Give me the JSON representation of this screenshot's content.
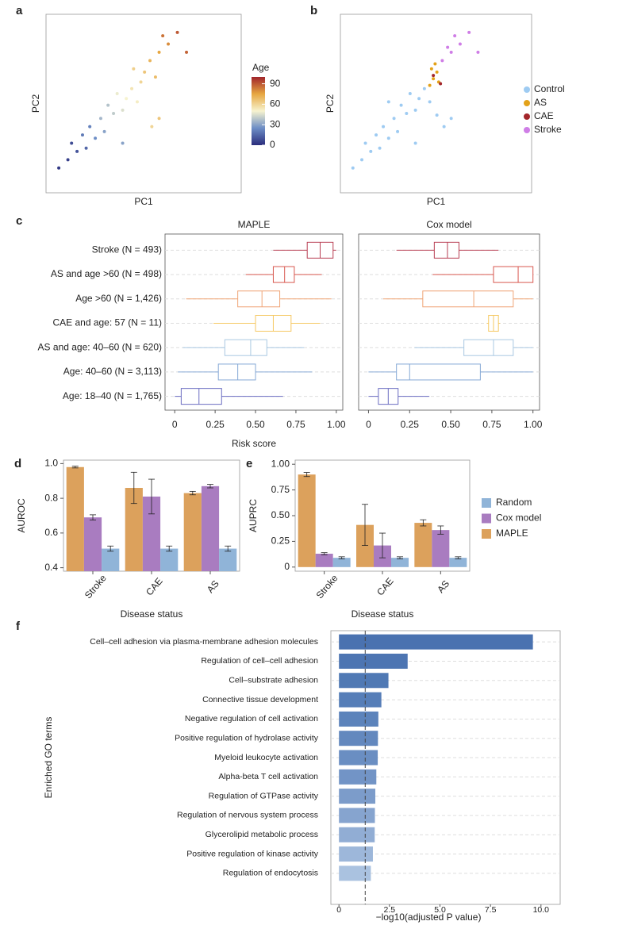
{
  "chart_data": [
    {
      "type": "scatter",
      "label": "a",
      "xlabel": "PC1",
      "ylabel": "PC2",
      "xlim": [
        -4.2,
        6.5
      ],
      "ylim": [
        -4.5,
        6.3
      ],
      "x": [
        -3,
        -2.5,
        -2.8,
        -2,
        -2.2,
        -1.5,
        -1.8,
        -1,
        -1.2,
        -0.5,
        -0.8,
        0,
        0.2,
        -0.3,
        0.5,
        0.8,
        1,
        1.2,
        0.6,
        1.5,
        1.8,
        2,
        2.5,
        2.2,
        3,
        1.6,
        2,
        -3.5,
        3.5,
        0
      ],
      "y": [
        -2.5,
        -2,
        -1.5,
        -1.8,
        -1,
        -1.2,
        -0.5,
        -0.8,
        0,
        0.3,
        0.8,
        0.5,
        1.2,
        1.5,
        1.8,
        1,
        2.2,
        2.8,
        3,
        3.5,
        2.5,
        4,
        4.5,
        5,
        5.2,
        -0.5,
        0,
        -3,
        4,
        -1.5
      ],
      "color_values": [
        5,
        10,
        8,
        15,
        20,
        25,
        22,
        30,
        35,
        40,
        38,
        45,
        50,
        48,
        55,
        52,
        60,
        65,
        62,
        70,
        68,
        75,
        80,
        85,
        90,
        60,
        65,
        3,
        88,
        30
      ],
      "colorbar": {
        "title": "Age",
        "lim": [
          0,
          100
        ],
        "ticks": [
          0,
          30,
          60,
          90
        ],
        "colors": [
          "#2a2d7c",
          "#6d8ec6",
          "#f6f3cf",
          "#e7a741",
          "#a1252b"
        ]
      }
    },
    {
      "type": "scatter",
      "label": "b",
      "xlabel": "PC1",
      "ylabel": "PC2",
      "xlim": [
        -4.2,
        6.5
      ],
      "ylim": [
        -4.5,
        6.3
      ],
      "series": [
        {
          "name": "Control",
          "color": "#9ecbf2",
          "x": [
            -3,
            -2.5,
            -2.8,
            -2,
            -2.2,
            -1.5,
            -1.8,
            -1,
            -1.2,
            -0.5,
            -0.8,
            0,
            0.2,
            -0.3,
            0.5,
            0.8,
            1.6,
            2,
            -3.5,
            0,
            1.2,
            -1.5
          ],
          "y": [
            -2.5,
            -2,
            -1.5,
            -1.8,
            -1,
            -1.2,
            -0.5,
            -0.8,
            0,
            0.3,
            0.8,
            0.5,
            1.2,
            1.5,
            1.8,
            1,
            -0.5,
            0,
            -3,
            -1.5,
            0.2,
            1
          ]
        },
        {
          "name": "AS",
          "color": "#e3a21a",
          "x": [
            0.8,
            1,
            1.2,
            0.9,
            1.3,
            1.1
          ],
          "y": [
            2,
            2.4,
            2.8,
            3,
            2.2,
            3.3
          ]
        },
        {
          "name": "CAE",
          "color": "#a3262b",
          "x": [
            1,
            1.4
          ],
          "y": [
            2.6,
            2.1
          ]
        },
        {
          "name": "Stroke",
          "color": "#cf7ee6",
          "x": [
            1.5,
            2,
            2.5,
            2.2,
            3,
            1.8,
            3.5
          ],
          "y": [
            3.5,
            4,
            4.5,
            5,
            5.2,
            4.3,
            4
          ]
        }
      ]
    },
    {
      "type": "box",
      "label": "c",
      "xlabel": "Risk score",
      "xlim": [
        -0.06,
        1.04
      ],
      "xticks": [
        0,
        {
          "value": 0.25,
          "label": "0.25"
        },
        {
          "value": 0.5,
          "label": "0.50"
        },
        {
          "value": 0.75,
          "label": "0.75"
        },
        {
          "value": 1,
          "label": "1.00"
        }
      ],
      "categories": [
        "Stroke (N = 493)",
        "AS and age >60 (N = 498)",
        "Age >60 (N = 1,426)",
        "CAE and age: 57 (N = 11)",
        "AS and age: 40–60 (N = 620)",
        "Age: 40–60 (N = 3,113)",
        "Age: 18–40 (N = 1,765)"
      ],
      "colors": [
        "#b83d52",
        "#d8584f",
        "#f0a577",
        "#f5c862",
        "#a9c8e2",
        "#86a9d6",
        "#6b6dc1"
      ],
      "panels": [
        {
          "title": "MAPLE",
          "min": [
            0.61,
            0.44,
            0.07,
            0.24,
            0.05,
            0.02,
            0
          ],
          "q1": [
            0.82,
            0.61,
            0.39,
            0.5,
            0.31,
            0.27,
            0.04
          ],
          "median": [
            0.9,
            0.68,
            0.54,
            0.61,
            0.47,
            0.39,
            0.15
          ],
          "q3": [
            0.98,
            0.74,
            0.65,
            0.72,
            0.57,
            0.5,
            0.29
          ],
          "max": [
            1,
            0.91,
            0.97,
            0.9,
            0.8,
            0.85,
            0.67
          ]
        },
        {
          "title": "Cox model",
          "min": [
            0.17,
            0.39,
            0.09,
            0.72,
            0.28,
            0,
            0
          ],
          "q1": [
            0.4,
            0.76,
            0.33,
            0.73,
            0.58,
            0.17,
            0.06
          ],
          "median": [
            0.48,
            0.91,
            0.64,
            0.76,
            0.76,
            0.25,
            0.12
          ],
          "q3": [
            0.55,
            1,
            0.88,
            0.79,
            0.88,
            0.68,
            0.18
          ],
          "max": [
            0.79,
            1,
            1,
            0.8,
            1,
            1,
            0.37
          ]
        }
      ]
    },
    {
      "type": "bar",
      "label": "d",
      "ylabel": "AUROC",
      "xlabel": "Disease status",
      "categories": [
        "Stroke",
        "CAE",
        "AS"
      ],
      "ylim": [
        0.38,
        1.02
      ],
      "yticks": [
        0.4,
        0.6,
        0.8,
        {
          "value": 1,
          "label": "1.0"
        }
      ],
      "series": [
        {
          "name": "MAPLE",
          "color": "#dca15c",
          "values": [
            0.98,
            0.86,
            0.83
          ],
          "errors": [
            0.005,
            0.09,
            0.01
          ]
        },
        {
          "name": "Cox model",
          "color": "#a97cc0",
          "values": [
            0.69,
            0.81,
            0.87
          ],
          "errors": [
            0.015,
            0.1,
            0.01
          ]
        },
        {
          "name": "Random",
          "color": "#90b4d8",
          "values": [
            0.51,
            0.51,
            0.51
          ],
          "errors": [
            0.015,
            0.015,
            0.015
          ]
        }
      ]
    },
    {
      "type": "bar",
      "label": "e",
      "ylabel": "AUPRC",
      "xlabel": "Disease status",
      "categories": [
        "Stroke",
        "CAE",
        "AS"
      ],
      "legend": "right",
      "ylim": [
        -0.04,
        1.04
      ],
      "yticks": [
        0,
        {
          "value": 0.25,
          "label": "0.25"
        },
        {
          "value": 0.5,
          "label": "0.50"
        },
        {
          "value": 0.75,
          "label": "0.75"
        },
        {
          "value": 1,
          "label": "1.00"
        }
      ],
      "series": [
        {
          "name": "MAPLE",
          "color": "#dca15c",
          "values": [
            0.9,
            0.41,
            0.43
          ],
          "errors": [
            0.02,
            0.2,
            0.03
          ]
        },
        {
          "name": "Cox model",
          "color": "#a97cc0",
          "values": [
            0.13,
            0.21,
            0.36
          ],
          "errors": [
            0.01,
            0.12,
            0.04
          ]
        },
        {
          "name": "Random",
          "color": "#90b4d8",
          "values": [
            0.09,
            0.09,
            0.09
          ],
          "errors": [
            0.01,
            0.01,
            0.01
          ]
        }
      ]
    },
    {
      "type": "barh",
      "label": "f",
      "ylabel": "Enriched GO terms",
      "xlabel": "−log10(adjusted P value)",
      "xlim": [
        -0.4,
        10.95
      ],
      "xticks": [
        0,
        {
          "value": 2.5,
          "label": "2.5"
        },
        {
          "value": 5,
          "label": "5.0"
        },
        {
          "value": 7.5,
          "label": "7.5"
        },
        {
          "value": 10,
          "label": "10.0"
        }
      ],
      "threshold": 1.3,
      "categories": [
        "Cell–cell adhesion via plasma-membrane adhesion molecules",
        "Regulation of cell–cell adhesion",
        "Cell–substrate adhesion",
        "Connective tissue development",
        "Negative regulation of cell activation",
        "Positive regulation of hydrolase activity",
        "Myeloid leukocyte activation",
        "Alpha-beta T cell activation",
        "Regulation of GTPase activity",
        "Regulation of nervous system process",
        "Glycerolipid metabolic process",
        "Positive regulation of kinase activity",
        "Regulation of endocytosis"
      ],
      "values": [
        9.6,
        3.4,
        2.45,
        2.1,
        1.95,
        1.93,
        1.92,
        1.85,
        1.8,
        1.78,
        1.77,
        1.68,
        1.58
      ],
      "colors": [
        "#4a72b0",
        "#4d75b2",
        "#5079b4",
        "#567eb8",
        "#5c83bb",
        "#6388be",
        "#6a8ec2",
        "#7294c6",
        "#7c9cca",
        "#86a4cf",
        "#91add4",
        "#9db7da",
        "#aac2e0"
      ]
    }
  ]
}
